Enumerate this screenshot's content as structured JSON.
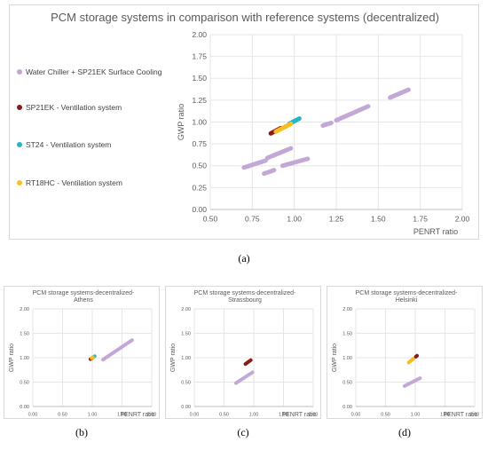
{
  "colors": {
    "water_chiller": "#c3a7d6",
    "sp21ek": "#8b1a1a",
    "st24": "#24b5c9",
    "rt18hc": "#f5c01f",
    "grid": "#e6e6e6",
    "border": "#d9d9d9"
  },
  "panel_labels": {
    "a": "(a)",
    "b": "(b)",
    "c": "(c)",
    "d": "(d)"
  },
  "chart_data": [
    {
      "id": "a",
      "type": "scatter",
      "title": "PCM storage systems in comparison with reference systems (decentralized)",
      "xlabel": "PENRT ratio",
      "ylabel": "GWP ratio",
      "xlim": [
        0.5,
        2.0
      ],
      "ylim": [
        0.0,
        2.0
      ],
      "xticks": [
        "0.50",
        "0.75",
        "1.00",
        "1.25",
        "1.50",
        "1.75",
        "2.00"
      ],
      "yticks": [
        "0.00",
        "0.25",
        "0.50",
        "0.75",
        "1.00",
        "1.25",
        "1.50",
        "1.75",
        "2.00"
      ],
      "grid": true,
      "legend_position": "left",
      "series": [
        {
          "name": "Water Chiller + SP21EK Surface Cooling",
          "color_key": "water_chiller",
          "segments": [
            [
              [
                0.7,
                0.48
              ],
              [
                0.83,
                0.56
              ]
            ],
            [
              [
                0.84,
                0.59
              ],
              [
                0.98,
                0.7
              ]
            ],
            [
              [
                0.82,
                0.41
              ],
              [
                0.88,
                0.45
              ]
            ],
            [
              [
                0.93,
                0.5
              ],
              [
                1.08,
                0.58
              ]
            ],
            [
              [
                1.17,
                0.96
              ],
              [
                1.22,
                0.99
              ]
            ],
            [
              [
                1.25,
                1.02
              ],
              [
                1.44,
                1.18
              ]
            ],
            [
              [
                1.57,
                1.28
              ],
              [
                1.68,
                1.37
              ]
            ]
          ]
        },
        {
          "name": "SP21EK - Ventilation system",
          "color_key": "sp21ek",
          "segments": [
            [
              [
                0.86,
                0.87
              ],
              [
                0.92,
                0.93
              ]
            ]
          ]
        },
        {
          "name": "ST24 - Ventilation system",
          "color_key": "st24",
          "segments": [
            [
              [
                0.97,
                0.98
              ],
              [
                1.03,
                1.04
              ]
            ]
          ]
        },
        {
          "name": "RT18HC - Ventilation system",
          "color_key": "rt18hc",
          "segments": [
            [
              [
                0.89,
                0.89
              ],
              [
                0.98,
                0.98
              ]
            ]
          ]
        }
      ]
    },
    {
      "id": "b",
      "type": "scatter",
      "title": "PCM storage systems-decentralized-Athens",
      "title_lines": [
        "PCM storage systems-decentralized-",
        "Athens"
      ],
      "xlabel": "PENRT ratio",
      "ylabel": "GWP ratio",
      "xlim": [
        0.0,
        2.0
      ],
      "ylim": [
        0.0,
        2.0
      ],
      "xticks": [
        "0.00",
        "0.50",
        "1.00",
        "1.50",
        "2.00"
      ],
      "yticks": [
        "0.00",
        "0.50",
        "1.00",
        "1.50",
        "2.00"
      ],
      "grid": true,
      "series": [
        {
          "color_key": "water_chiller",
          "segments": [
            [
              [
                1.18,
                0.96
              ],
              [
                1.67,
                1.36
              ]
            ]
          ]
        },
        {
          "color_key": "sp21ek",
          "segments": [
            [
              [
                0.97,
                0.97
              ],
              [
                1.0,
                0.99
              ]
            ]
          ]
        },
        {
          "color_key": "st24",
          "segments": [
            [
              [
                1.0,
                1.0
              ],
              [
                1.04,
                1.03
              ]
            ]
          ]
        },
        {
          "color_key": "rt18hc",
          "segments": [
            [
              [
                0.99,
                0.99
              ],
              [
                1.01,
                1.01
              ]
            ]
          ]
        }
      ]
    },
    {
      "id": "c",
      "type": "scatter",
      "title": "PCM storage systems-decentralized-Strassbourg",
      "title_lines": [
        "PCM storage systems-decentralized-",
        "Strassbourg"
      ],
      "xlabel": "PENRT ratio",
      "ylabel": "GWP ratio",
      "xlim": [
        0.0,
        2.0
      ],
      "ylim": [
        0.0,
        2.0
      ],
      "xticks": [
        "0.00",
        "0.50",
        "1.00",
        "1.50",
        "2.00"
      ],
      "yticks": [
        "0.00",
        "0.50",
        "1.00",
        "1.50",
        "2.00"
      ],
      "grid": true,
      "series": [
        {
          "color_key": "water_chiller",
          "segments": [
            [
              [
                0.7,
                0.48
              ],
              [
                0.98,
                0.7
              ]
            ]
          ]
        },
        {
          "color_key": "sp21ek",
          "segments": [
            [
              [
                0.86,
                0.87
              ],
              [
                0.95,
                0.95
              ]
            ]
          ]
        }
      ]
    },
    {
      "id": "d",
      "type": "scatter",
      "title": "PCM storage systems-decentralized-Helsinki",
      "title_lines": [
        "PCM storage systems-decentralized-",
        "Helsinki"
      ],
      "xlabel": "PENRT ratio",
      "ylabel": "GWP ratio",
      "xlim": [
        0.0,
        2.0
      ],
      "ylim": [
        0.0,
        2.0
      ],
      "xticks": [
        "0.00",
        "0.50",
        "1.00",
        "1.50",
        "2.00"
      ],
      "yticks": [
        "0.00",
        "0.50",
        "1.00",
        "1.50",
        "2.00"
      ],
      "grid": true,
      "series": [
        {
          "color_key": "water_chiller",
          "segments": [
            [
              [
                0.82,
                0.42
              ],
              [
                1.08,
                0.58
              ]
            ]
          ]
        },
        {
          "color_key": "rt18hc",
          "segments": [
            [
              [
                0.89,
                0.9
              ],
              [
                0.97,
                0.98
              ]
            ]
          ]
        },
        {
          "color_key": "sp21ek",
          "segments": [
            [
              [
                1.01,
                1.02
              ],
              [
                1.03,
                1.04
              ]
            ]
          ]
        }
      ]
    }
  ]
}
